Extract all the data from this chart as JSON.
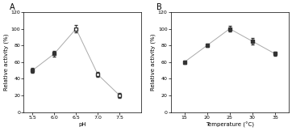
{
  "panel_A": {
    "label": "A",
    "xlabel": "pH",
    "ylabel": "Relative activity (%)",
    "xlim": [
      5.3,
      8.0
    ],
    "ylim": [
      0,
      120
    ],
    "xticks": [
      5.5,
      6.0,
      6.5,
      7.0,
      7.5
    ],
    "yticks": [
      0,
      20,
      40,
      60,
      80,
      100,
      120
    ],
    "x": [
      5.5,
      6.0,
      6.5,
      7.0,
      7.5
    ],
    "y": [
      50,
      70,
      100,
      45,
      20
    ],
    "yerr": [
      3,
      3,
      4,
      3,
      3
    ],
    "filled": [
      true,
      true,
      false,
      false,
      false
    ]
  },
  "panel_B": {
    "label": "B",
    "xlabel": "Temperature (°C)",
    "ylabel": "Relative activity (%)",
    "xlim": [
      12,
      38
    ],
    "ylim": [
      0,
      120
    ],
    "xticks": [
      15,
      20,
      25,
      30,
      35
    ],
    "yticks": [
      0,
      20,
      40,
      60,
      80,
      100,
      120
    ],
    "x": [
      15,
      20,
      25,
      30,
      35
    ],
    "y": [
      60,
      80,
      100,
      85,
      70
    ],
    "yerr": [
      2,
      2,
      3,
      4,
      2
    ],
    "filled": [
      true,
      true,
      true,
      true,
      true
    ]
  },
  "line_color": "#aaaaaa",
  "marker_size": 3,
  "marker_color_filled": "#333333",
  "font_size_label": 5,
  "font_size_tick": 4.5,
  "font_size_panel": 7,
  "cap_size": 1.5,
  "elinewidth": 0.6,
  "linewidth": 0.7
}
